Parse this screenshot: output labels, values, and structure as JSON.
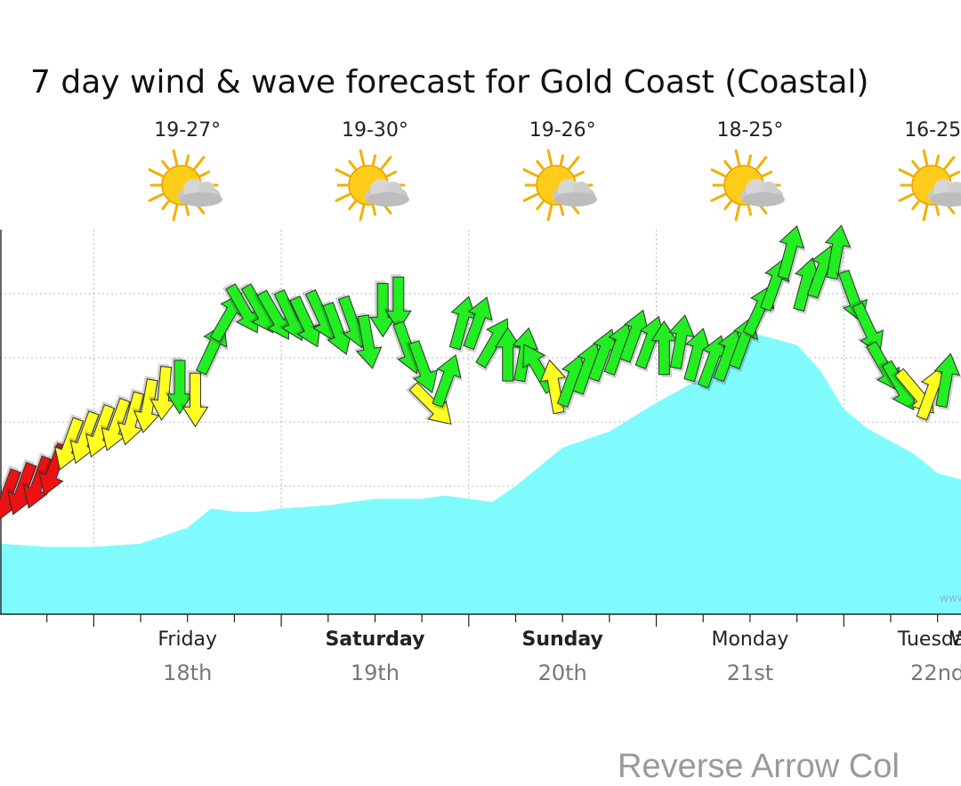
{
  "page_title": "7 day wind & wave forecast for Gold Coast (Coastal)",
  "footer_text": "Reverse Arrow Col",
  "watermark": "www",
  "days": [
    {
      "name": "Friday",
      "date": "18th",
      "bold": false,
      "temp": "19-27°",
      "icon": "sun-cloud-icon"
    },
    {
      "name": "Saturday",
      "date": "19th",
      "bold": true,
      "temp": "19-30°",
      "icon": "sun-cloud-icon"
    },
    {
      "name": "Sunday",
      "date": "20th",
      "bold": true,
      "temp": "19-26°",
      "icon": "sun-cloud-icon"
    },
    {
      "name": "Monday",
      "date": "21st",
      "bold": false,
      "temp": "18-25°",
      "icon": "sun-cloud-icon"
    },
    {
      "name": "Tuesday",
      "date": "22nd",
      "bold": false,
      "temp": "16-25°",
      "icon": "sun-cloud-icon"
    }
  ],
  "cut_day_letter": "W",
  "colors": {
    "wave_fill": "#80fbfd",
    "wind_green": "#22ee22",
    "wind_yellow": "#ffff22",
    "wind_red": "#ee1111",
    "grid": "#b8b8b8"
  },
  "chart_data": {
    "type": "area",
    "title": "7 day wind & wave forecast for Gold Coast (Coastal)",
    "x_unit": "hours from start of Friday 18th",
    "xlim": [
      -12,
      111
    ],
    "ylim": [
      0,
      6
    ],
    "x_categories": [
      "Friday 18th",
      "Saturday 19th",
      "Sunday 20th",
      "Monday 21st",
      "Tuesday 22nd"
    ],
    "wave_series": {
      "name": "wave height",
      "x": [
        -12,
        -6,
        0,
        6,
        12,
        15,
        18,
        21,
        24,
        30,
        36,
        42,
        45,
        48,
        51,
        54,
        60,
        66,
        72,
        78,
        84,
        90,
        93,
        96,
        99,
        102,
        105,
        108,
        111
      ],
      "y": [
        1.1,
        1.05,
        1.05,
        1.1,
        1.35,
        1.65,
        1.6,
        1.6,
        1.65,
        1.7,
        1.8,
        1.8,
        1.85,
        1.8,
        1.75,
        2.0,
        2.6,
        2.85,
        3.3,
        3.7,
        4.4,
        4.2,
        3.8,
        3.2,
        2.9,
        2.7,
        2.5,
        2.2,
        2.1
      ]
    },
    "wind_series": {
      "name": "wind speed & direction",
      "points": [
        {
          "x": -11,
          "y": 1.9,
          "dir": 200,
          "level": "red"
        },
        {
          "x": -9,
          "y": 2.0,
          "dir": 200,
          "level": "red"
        },
        {
          "x": -7,
          "y": 2.1,
          "dir": 200,
          "level": "red"
        },
        {
          "x": -5,
          "y": 2.3,
          "dir": 200,
          "level": "red"
        },
        {
          "x": -3,
          "y": 2.7,
          "dir": 200,
          "level": "yellow"
        },
        {
          "x": -1,
          "y": 2.8,
          "dir": 200,
          "level": "yellow"
        },
        {
          "x": 1,
          "y": 2.9,
          "dir": 200,
          "level": "yellow"
        },
        {
          "x": 3,
          "y": 3.0,
          "dir": 200,
          "level": "yellow"
        },
        {
          "x": 5,
          "y": 3.1,
          "dir": 195,
          "level": "yellow"
        },
        {
          "x": 7,
          "y": 3.3,
          "dir": 190,
          "level": "yellow"
        },
        {
          "x": 9,
          "y": 3.5,
          "dir": 185,
          "level": "yellow"
        },
        {
          "x": 11,
          "y": 3.6,
          "dir": 180,
          "level": "green"
        },
        {
          "x": 13,
          "y": 3.4,
          "dir": 180,
          "level": "yellow"
        },
        {
          "x": 15,
          "y": 4.1,
          "dir": 25,
          "level": "green"
        },
        {
          "x": 17,
          "y": 4.6,
          "dir": 30,
          "level": "green"
        },
        {
          "x": 19,
          "y": 4.8,
          "dir": 150,
          "level": "green"
        },
        {
          "x": 21,
          "y": 4.8,
          "dir": 150,
          "level": "green"
        },
        {
          "x": 23,
          "y": 4.7,
          "dir": 150,
          "level": "green"
        },
        {
          "x": 25,
          "y": 4.7,
          "dir": 155,
          "level": "green"
        },
        {
          "x": 27,
          "y": 4.6,
          "dir": 155,
          "level": "green"
        },
        {
          "x": 29,
          "y": 4.7,
          "dir": 155,
          "level": "green"
        },
        {
          "x": 31,
          "y": 4.5,
          "dir": 160,
          "level": "green"
        },
        {
          "x": 33,
          "y": 4.6,
          "dir": 160,
          "level": "green"
        },
        {
          "x": 35,
          "y": 4.3,
          "dir": 170,
          "level": "green"
        },
        {
          "x": 37,
          "y": 4.8,
          "dir": 180,
          "level": "green"
        },
        {
          "x": 39,
          "y": 4.9,
          "dir": 180,
          "level": "green"
        },
        {
          "x": 40,
          "y": 4.2,
          "dir": 160,
          "level": "green"
        },
        {
          "x": 42,
          "y": 3.9,
          "dir": 160,
          "level": "green"
        },
        {
          "x": 43,
          "y": 3.3,
          "dir": 135,
          "level": "yellow"
        },
        {
          "x": 45,
          "y": 3.6,
          "dir": 20,
          "level": "green"
        },
        {
          "x": 47,
          "y": 4.5,
          "dir": 15,
          "level": "green"
        },
        {
          "x": 49,
          "y": 4.5,
          "dir": 20,
          "level": "green"
        },
        {
          "x": 51,
          "y": 4.2,
          "dir": 30,
          "level": "green"
        },
        {
          "x": 53,
          "y": 4.0,
          "dir": 0,
          "level": "green"
        },
        {
          "x": 55,
          "y": 4.0,
          "dir": 10,
          "level": "green"
        },
        {
          "x": 57,
          "y": 3.8,
          "dir": 330,
          "level": "green"
        },
        {
          "x": 59,
          "y": 3.5,
          "dir": 350,
          "level": "yellow"
        },
        {
          "x": 61,
          "y": 3.6,
          "dir": 20,
          "level": "green"
        },
        {
          "x": 63,
          "y": 3.8,
          "dir": 20,
          "level": "green"
        },
        {
          "x": 65,
          "y": 4.0,
          "dir": 20,
          "level": "green"
        },
        {
          "x": 67,
          "y": 4.1,
          "dir": 20,
          "level": "green"
        },
        {
          "x": 69,
          "y": 4.3,
          "dir": 20,
          "level": "green"
        },
        {
          "x": 71,
          "y": 4.2,
          "dir": 20,
          "level": "green"
        },
        {
          "x": 73,
          "y": 4.1,
          "dir": 0,
          "level": "green"
        },
        {
          "x": 75,
          "y": 4.2,
          "dir": 10,
          "level": "green"
        },
        {
          "x": 77,
          "y": 4.0,
          "dir": 15,
          "level": "green"
        },
        {
          "x": 79,
          "y": 3.9,
          "dir": 20,
          "level": "green"
        },
        {
          "x": 81,
          "y": 4.0,
          "dir": 20,
          "level": "green"
        },
        {
          "x": 83,
          "y": 4.2,
          "dir": 20,
          "level": "green"
        },
        {
          "x": 85,
          "y": 4.7,
          "dir": 25,
          "level": "green"
        },
        {
          "x": 87,
          "y": 5.1,
          "dir": 20,
          "level": "green"
        },
        {
          "x": 89,
          "y": 5.6,
          "dir": 15,
          "level": "green"
        },
        {
          "x": 91,
          "y": 5.1,
          "dir": 15,
          "level": "green"
        },
        {
          "x": 93,
          "y": 5.3,
          "dir": 20,
          "level": "green"
        },
        {
          "x": 95,
          "y": 5.6,
          "dir": 10,
          "level": "green"
        },
        {
          "x": 97,
          "y": 5.0,
          "dir": 160,
          "level": "green"
        },
        {
          "x": 99,
          "y": 4.5,
          "dir": 155,
          "level": "green"
        },
        {
          "x": 101,
          "y": 3.9,
          "dir": 150,
          "level": "green"
        },
        {
          "x": 103,
          "y": 3.6,
          "dir": 150,
          "level": "green"
        },
        {
          "x": 105,
          "y": 3.5,
          "dir": 140,
          "level": "yellow"
        },
        {
          "x": 107,
          "y": 3.4,
          "dir": 20,
          "level": "yellow"
        },
        {
          "x": 109,
          "y": 3.6,
          "dir": 10,
          "level": "green"
        }
      ]
    }
  }
}
